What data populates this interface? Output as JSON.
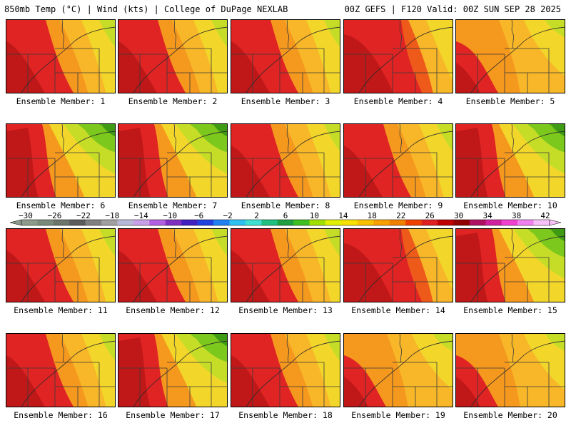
{
  "header": {
    "left": "850mb Temp (°C) | Wind (kts) | College of DuPage NEXLAB",
    "right": "00Z GEFS | F120 Valid: 00Z SUN SEP 28 2025"
  },
  "caption_prefix": "Ensemble Member:",
  "members": [
    {
      "label": "Ensemble Member: 1",
      "style": "hot-west"
    },
    {
      "label": "Ensemble Member: 2",
      "style": "hot-west"
    },
    {
      "label": "Ensemble Member: 3",
      "style": "hot-west"
    },
    {
      "label": "Ensemble Member: 4",
      "style": "hottest"
    },
    {
      "label": "Ensemble Member: 5",
      "style": "warm"
    },
    {
      "label": "Ensemble Member: 6",
      "style": "cool-ne"
    },
    {
      "label": "Ensemble Member: 7",
      "style": "cool-ne"
    },
    {
      "label": "Ensemble Member: 8",
      "style": "hot-west"
    },
    {
      "label": "Ensemble Member: 9",
      "style": "hot-west"
    },
    {
      "label": "Ensemble Member: 10",
      "style": "cool-ne"
    },
    {
      "label": "Ensemble Member: 11",
      "style": "hot-west"
    },
    {
      "label": "Ensemble Member: 12",
      "style": "hot-west"
    },
    {
      "label": "Ensemble Member: 13",
      "style": "hot-west"
    },
    {
      "label": "Ensemble Member: 14",
      "style": "hottest"
    },
    {
      "label": "Ensemble Member: 15",
      "style": "cool-ne"
    },
    {
      "label": "Ensemble Member: 16",
      "style": "hot-west"
    },
    {
      "label": "Ensemble Member: 17",
      "style": "cool-ne"
    },
    {
      "label": "Ensemble Member: 18",
      "style": "hot-west"
    },
    {
      "label": "Ensemble Member: 19",
      "style": "warm"
    },
    {
      "label": "Ensemble Member: 20",
      "style": "warm"
    }
  ],
  "colorbar": {
    "tick_labels": [
      "−30",
      "−26",
      "−22",
      "−18",
      "−14",
      "−10",
      "−6",
      "−2",
      "2",
      "6",
      "10",
      "14",
      "18",
      "22",
      "26",
      "30",
      "34",
      "38",
      "42"
    ],
    "colors": [
      "#8c9a8c",
      "#7a8a7a",
      "#6b756b",
      "#5b5b5b",
      "#808080",
      "#a0a0a0",
      "#b8b8d8",
      "#c8a0e8",
      "#b060e0",
      "#8030c0",
      "#4020c0",
      "#2040e0",
      "#2080f0",
      "#30c0f0",
      "#40e0d0",
      "#20c080",
      "#20a040",
      "#40c020",
      "#a0e000",
      "#e0f000",
      "#f8e000",
      "#f8c000",
      "#f8a000",
      "#f08000",
      "#f04000",
      "#e02020",
      "#c00000",
      "#900000",
      "#b01060",
      "#d020a0",
      "#f040d0",
      "#f080f0",
      "#f8c0f8"
    ]
  },
  "palette": {
    "darkred": "#c01818",
    "red": "#e02424",
    "orangered": "#ee5a1a",
    "orange": "#f5981e",
    "lightorange": "#f7b728",
    "yellow": "#f2d72a",
    "yellowgreen": "#c6dd28",
    "green": "#7cc81c",
    "darkgreen": "#3f9a14"
  }
}
